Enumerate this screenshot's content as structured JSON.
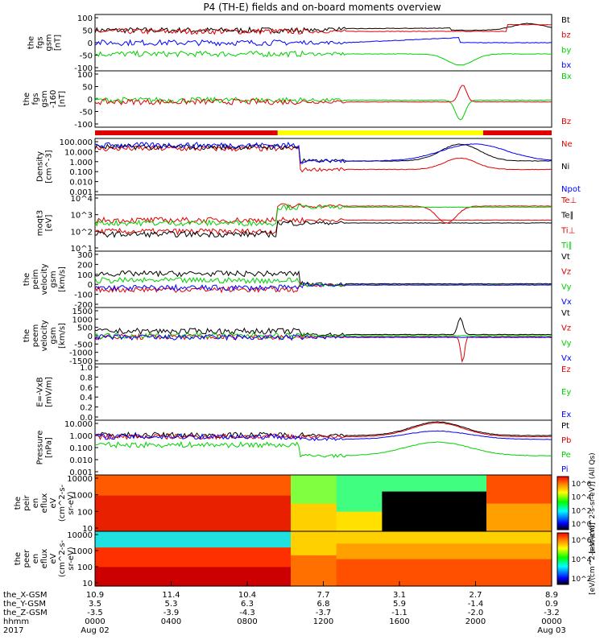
{
  "title": "P4 (TH-E) fields and on-board moments overview",
  "colors": {
    "black": "#000000",
    "red": "#e00000",
    "green": "#00d000",
    "blue": "#0000ff",
    "yellow": "#ffff00"
  },
  "chart_data": [
    {
      "type": "line",
      "panel": "fgs_gsm",
      "ylabel": [
        "the",
        "fgs",
        "gsm",
        "[nT]"
      ],
      "ylim": [
        -100,
        100
      ],
      "yticks": [
        "100",
        "50",
        "0",
        "-50",
        "-100"
      ],
      "series": [
        {
          "name": "Bt",
          "color": "black"
        },
        {
          "name": "bz",
          "color": "red"
        },
        {
          "name": "by",
          "color": "green"
        },
        {
          "name": "bx",
          "color": "blue"
        }
      ]
    },
    {
      "type": "line",
      "panel": "fgs_gse",
      "ylabel": [
        "the",
        "fgs",
        "gsm",
        "-160",
        "[nT]"
      ],
      "ylim": [
        -120,
        120
      ],
      "yticks": [
        "100",
        "50",
        "0",
        "-50",
        "-100"
      ],
      "series": [
        {
          "name": "Bx",
          "color": "green"
        },
        {
          "name": "Bz",
          "color": "red"
        }
      ]
    },
    {
      "type": "bar",
      "panel": "region",
      "segments": [
        {
          "color": "red"
        },
        {
          "color": "yellow"
        },
        {
          "color": "red"
        }
      ]
    },
    {
      "type": "line",
      "panel": "density",
      "ylabel": [
        "Density",
        "[cm^-3]"
      ],
      "log": true,
      "yticks": [
        "100.000",
        "10.000",
        "1.000",
        "0.100",
        "0.010",
        "0.001"
      ],
      "series": [
        {
          "name": "Ne",
          "color": "red"
        },
        {
          "name": "Ni",
          "color": "black"
        },
        {
          "name": "Npot",
          "color": "blue"
        }
      ]
    },
    {
      "type": "line",
      "panel": "temperature",
      "ylabel": [
        "moqt3",
        "[eV]"
      ],
      "log": true,
      "yticks": [
        "10^4",
        "10^3",
        "10^2",
        "10^1"
      ],
      "series": [
        {
          "name": "Te⊥",
          "color": "red"
        },
        {
          "name": "Te∥",
          "color": "black"
        },
        {
          "name": "Ti⊥",
          "color": "red"
        },
        {
          "name": "Ti∥",
          "color": "green"
        }
      ]
    },
    {
      "type": "line",
      "panel": "ion_velocity",
      "ylabel": [
        "the",
        "peim",
        "velocity",
        "gsm",
        "[km/s]"
      ],
      "ylim": [
        -200,
        300
      ],
      "yticks": [
        "300",
        "200",
        "100",
        "0",
        "-100",
        "-200"
      ],
      "series": [
        {
          "name": "Vt",
          "color": "black"
        },
        {
          "name": "Vz",
          "color": "red"
        },
        {
          "name": "Vy",
          "color": "green"
        },
        {
          "name": "Vx",
          "color": "blue"
        }
      ]
    },
    {
      "type": "line",
      "panel": "electron_velocity",
      "ylabel": [
        "the",
        "peem",
        "velocity",
        "gsm",
        "[km/s]"
      ],
      "ylim": [
        -1500,
        1500
      ],
      "yticks": [
        "1500",
        "1000",
        "500",
        "0",
        "-500",
        "-1000",
        "-1500"
      ],
      "series": [
        {
          "name": "Vt",
          "color": "black"
        },
        {
          "name": "Vz",
          "color": "red"
        },
        {
          "name": "Vy",
          "color": "green"
        },
        {
          "name": "Vx",
          "color": "blue"
        }
      ]
    },
    {
      "type": "line",
      "panel": "efield",
      "ylabel": [
        "E=-VxB",
        "[mV/m]"
      ],
      "ylim": [
        0,
        1
      ],
      "yticks": [
        "1.0",
        "0.8",
        "0.6",
        "0.4",
        "0.2",
        "0.0"
      ],
      "series": [
        {
          "name": "Ez",
          "color": "red"
        },
        {
          "name": "Ey",
          "color": "green"
        },
        {
          "name": "Ex",
          "color": "blue"
        }
      ]
    },
    {
      "type": "line",
      "panel": "pressure",
      "ylabel": [
        "Pressure",
        "[nPa]"
      ],
      "log": true,
      "yticks": [
        "10.000",
        "1.000",
        "0.100",
        "0.010",
        "0.001"
      ],
      "series": [
        {
          "name": "Pt",
          "color": "black"
        },
        {
          "name": "Pb",
          "color": "red"
        },
        {
          "name": "Pe",
          "color": "green"
        },
        {
          "name": "Pi",
          "color": "blue"
        }
      ]
    },
    {
      "type": "heatmap",
      "panel": "ion_spectrogram",
      "ylabel": [
        "the",
        "peir",
        "en",
        "eflux",
        "eV",
        "(cm^2-s-",
        "sr-eV)"
      ],
      "log": true,
      "yticks": [
        "10000",
        "1000",
        "100",
        "10"
      ],
      "colorbar": {
        "ticks": [
          "10^6",
          "10^4",
          "10^2",
          "10^0"
        ],
        "label": "[eV/(cm^2-s-sr-eV)] (All Qs)"
      }
    },
    {
      "type": "heatmap",
      "panel": "electron_spectrogram",
      "ylabel": [
        "the",
        "peer",
        "en",
        "eflux",
        "eV",
        "(cm^2-s-",
        "sr-eV)"
      ],
      "log": true,
      "yticks": [
        "10000",
        "1000",
        "100",
        "10"
      ],
      "colorbar": {
        "ticks": [
          "10^6",
          "10^4",
          "10^2"
        ],
        "label": "[eV/(cm^2-s-sr-eV)]"
      }
    }
  ],
  "xaxis": {
    "row_labels": [
      "the_X-GSM",
      "the_Y-GSM",
      "the_Z-GSM",
      "hhmm",
      "2017"
    ],
    "ticks": [
      {
        "x": "10.9",
        "y": "3.5",
        "z": "-3.5",
        "hhmm": "0000",
        "date": "Aug 02"
      },
      {
        "x": "11.4",
        "y": "5.3",
        "z": "-3.9",
        "hhmm": "0400",
        "date": ""
      },
      {
        "x": "10.4",
        "y": "6.3",
        "z": "-4.3",
        "hhmm": "0800",
        "date": ""
      },
      {
        "x": "7.7",
        "y": "6.8",
        "z": "-3.7",
        "hhmm": "1200",
        "date": ""
      },
      {
        "x": "3.1",
        "y": "5.9",
        "z": "-1.1",
        "hhmm": "1600",
        "date": ""
      },
      {
        "x": "2.7",
        "y": "-1.4",
        "z": "-2.0",
        "hhmm": "2000",
        "date": ""
      },
      {
        "x": "8.9",
        "y": "0.9",
        "z": "-3.2",
        "hhmm": "0000",
        "date": "Aug 03"
      }
    ]
  }
}
